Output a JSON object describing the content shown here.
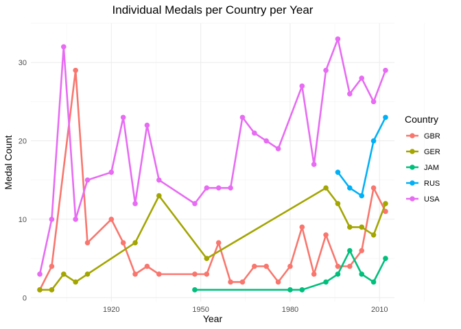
{
  "chart_data": {
    "type": "line",
    "title": "Individual Medals per Country per Year",
    "xlabel": "Year",
    "ylabel": "Medal Count",
    "xlim": [
      1893,
      2015
    ],
    "ylim": [
      -0.5,
      35
    ],
    "x_ticks": [
      1920,
      1950,
      1980,
      2010
    ],
    "y_ticks": [
      0,
      10,
      20,
      30
    ],
    "grid": true,
    "legend": {
      "title": "Country",
      "position": "right"
    },
    "series": [
      {
        "name": "GBR",
        "color": "#F8766D",
        "points": [
          [
            1896,
            1
          ],
          [
            1900,
            4
          ],
          [
            1908,
            29
          ],
          [
            1912,
            7
          ],
          [
            1920,
            10
          ],
          [
            1924,
            7
          ],
          [
            1928,
            3
          ],
          [
            1932,
            4
          ],
          [
            1936,
            3
          ],
          [
            1948,
            3
          ],
          [
            1952,
            3
          ],
          [
            1956,
            7
          ],
          [
            1960,
            2
          ],
          [
            1964,
            2
          ],
          [
            1968,
            4
          ],
          [
            1972,
            4
          ],
          [
            1976,
            2
          ],
          [
            1980,
            4
          ],
          [
            1984,
            9
          ],
          [
            1988,
            3
          ],
          [
            1992,
            8
          ],
          [
            1996,
            4
          ],
          [
            2000,
            4
          ],
          [
            2004,
            6
          ],
          [
            2008,
            14
          ],
          [
            2012,
            11
          ]
        ]
      },
      {
        "name": "GER",
        "color": "#A3A500",
        "points": [
          [
            1896,
            1
          ],
          [
            1900,
            1
          ],
          [
            1904,
            3
          ],
          [
            1908,
            2
          ],
          [
            1912,
            3
          ],
          [
            1928,
            7
          ],
          [
            1936,
            13
          ],
          [
            1952,
            5
          ],
          [
            1992,
            14
          ],
          [
            1996,
            12
          ],
          [
            2000,
            9
          ],
          [
            2004,
            9
          ],
          [
            2008,
            8
          ],
          [
            2012,
            12
          ]
        ]
      },
      {
        "name": "JAM",
        "color": "#00BF7D",
        "points": [
          [
            1948,
            1
          ],
          [
            1980,
            1
          ],
          [
            1984,
            1
          ],
          [
            1992,
            2
          ],
          [
            1996,
            3
          ],
          [
            2000,
            6
          ],
          [
            2004,
            3
          ],
          [
            2008,
            2
          ],
          [
            2012,
            5
          ]
        ]
      },
      {
        "name": "RUS",
        "color": "#00B0F6",
        "points": [
          [
            1996,
            16
          ],
          [
            2000,
            14
          ],
          [
            2004,
            13
          ],
          [
            2008,
            20
          ],
          [
            2012,
            23
          ]
        ]
      },
      {
        "name": "USA",
        "color": "#E76BF3",
        "points": [
          [
            1896,
            3
          ],
          [
            1900,
            10
          ],
          [
            1904,
            32
          ],
          [
            1908,
            10
          ],
          [
            1912,
            15
          ],
          [
            1920,
            16
          ],
          [
            1924,
            23
          ],
          [
            1928,
            12
          ],
          [
            1932,
            22
          ],
          [
            1936,
            15
          ],
          [
            1948,
            12
          ],
          [
            1952,
            14
          ],
          [
            1956,
            14
          ],
          [
            1960,
            14
          ],
          [
            1964,
            23
          ],
          [
            1968,
            21
          ],
          [
            1972,
            20
          ],
          [
            1976,
            19
          ],
          [
            1984,
            27
          ],
          [
            1988,
            17
          ],
          [
            1992,
            29
          ],
          [
            1996,
            33
          ],
          [
            2000,
            26
          ],
          [
            2004,
            28
          ],
          [
            2008,
            25
          ],
          [
            2012,
            29
          ]
        ]
      }
    ]
  }
}
